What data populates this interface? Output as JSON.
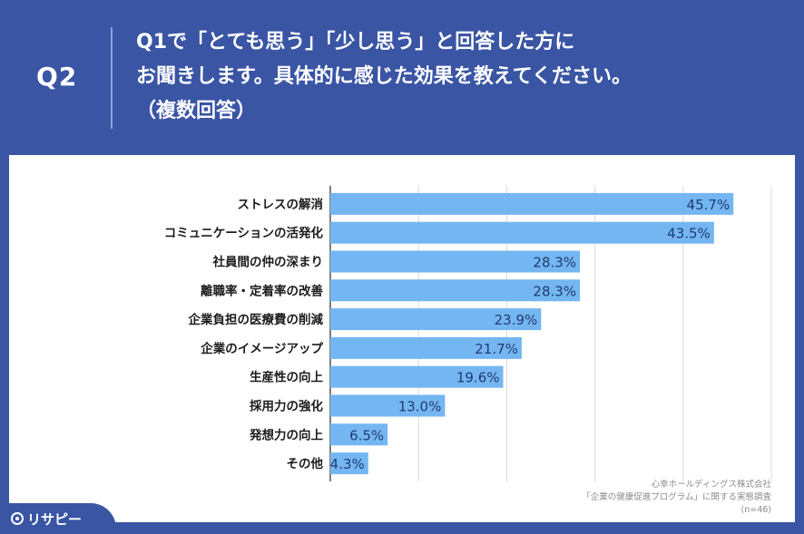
{
  "header": {
    "qnum": "Q2",
    "question_lines": [
      "Q1で「とても思う」「少し思う」と回答した方に",
      "お聞きします。具体的に感じた効果を教えてください。",
      "（複数回答）"
    ]
  },
  "chart_data": {
    "type": "bar",
    "orientation": "horizontal",
    "categories": [
      "ストレスの解消",
      "コミュニケーションの活発化",
      "社員間の仲の深まり",
      "離職率・定着率の改善",
      "企業負担の医療費の削減",
      "企業のイメージアップ",
      "生産性の向上",
      "採用力の強化",
      "発想力の向上",
      "その他"
    ],
    "values": [
      45.7,
      43.5,
      28.3,
      28.3,
      23.9,
      21.7,
      19.6,
      13.0,
      6.5,
      4.3
    ],
    "value_labels": [
      "45.7%",
      "43.5%",
      "28.3%",
      "28.3%",
      "23.9%",
      "21.7%",
      "19.6%",
      "13.0%",
      "6.5%",
      "4.3%"
    ],
    "xlim": [
      0,
      50
    ],
    "grid": true,
    "bar_color": "#74b6f2"
  },
  "source": {
    "line1": "心幸ホールディングス株式会社",
    "line2": "「企業の健康促進プログラム」に関する実態調査",
    "line3": "(n=46)"
  },
  "logo": {
    "text": "リサピー",
    "icon": "pin-circle-icon"
  }
}
